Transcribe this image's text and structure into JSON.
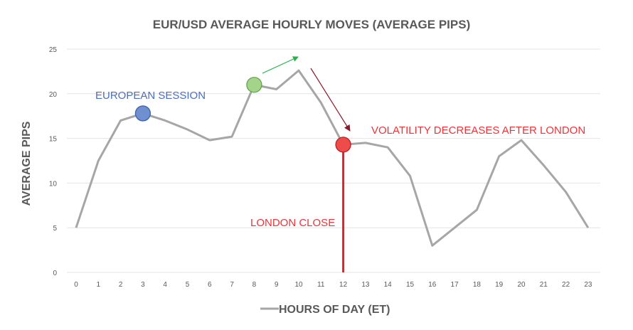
{
  "chart_data": {
    "type": "line",
    "title": "EUR/USD AVERAGE HOURLY MOVES (AVERAGE PIPS)",
    "xlabel": "HOURS OF DAY (ET)",
    "ylabel": "AVERAGE PIPS",
    "x": [
      0,
      1,
      2,
      3,
      4,
      5,
      6,
      7,
      8,
      9,
      10,
      11,
      12,
      13,
      14,
      15,
      16,
      17,
      18,
      19,
      20,
      21,
      22,
      23
    ],
    "series": [
      {
        "values": [
          5,
          12.5,
          17,
          17.8,
          17,
          16,
          14.8,
          15.2,
          21,
          20.5,
          22.6,
          19,
          14.3,
          14.5,
          14,
          10.8,
          3,
          5,
          7,
          13,
          14.8,
          12,
          9,
          5
        ]
      }
    ],
    "ylim": [
      0,
      25
    ],
    "yticks": [
      0,
      5,
      10,
      15,
      20,
      25
    ],
    "grid": true,
    "legend": "bottom",
    "markers": [
      {
        "x": 3,
        "y": 17.8,
        "fill": "#6f8fcf",
        "stroke": "#3c62b0"
      },
      {
        "x": 8,
        "y": 21,
        "fill": "#a3d48a",
        "stroke": "#5fa845"
      },
      {
        "x": 12,
        "y": 14.3,
        "fill": "#ee4b4b",
        "stroke": "#b81f1f"
      }
    ],
    "annotations": [
      {
        "text": "EUROPEAN SESSION",
        "color": "#4a6fbd"
      },
      {
        "text": "VOLATILITY DECREASES AFTER LONDON",
        "color": "#ee3338"
      },
      {
        "text": "LONDON CLOSE",
        "color": "#ee3338"
      }
    ],
    "vline": {
      "x": 12,
      "from": 0,
      "to": 14.3,
      "color": "#e0202a"
    },
    "colors": {
      "line": "#a6a6a6",
      "grid": "#e4e4e4",
      "text": "#595959",
      "green_arrow": "#27b34a",
      "red_arrow": "#8a1a2b"
    }
  }
}
